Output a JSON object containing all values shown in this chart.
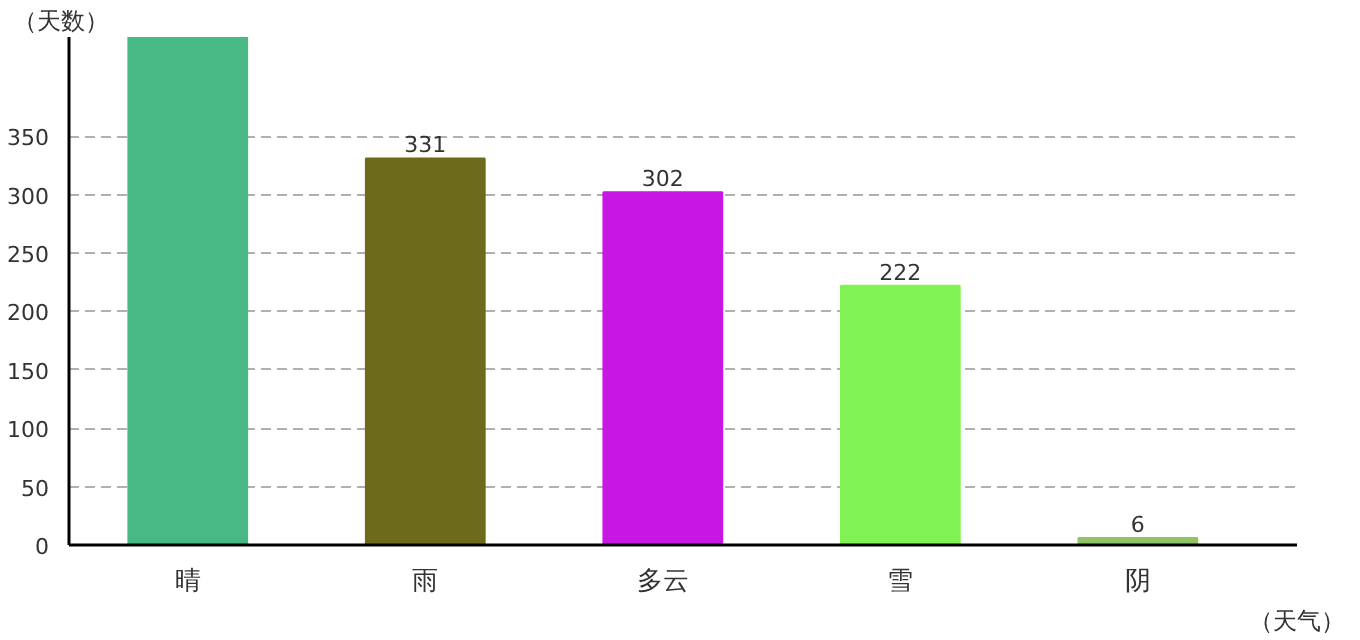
{
  "chart_data": {
    "type": "bar",
    "xlabel": "（天气）",
    "ylabel": "（天数）",
    "categories": [
      "晴",
      "雨",
      "多云",
      "雪",
      "阴"
    ],
    "values": [
      435,
      331,
      302,
      222,
      6
    ],
    "value_labels": [
      null,
      "331",
      "302",
      "222",
      "6"
    ],
    "colors": [
      "#48b884",
      "#6e6a1c",
      "#c817e4",
      "#80f251",
      "#8fc366"
    ],
    "ylim": [
      0,
      435
    ],
    "yticks": [
      0,
      50,
      100,
      150,
      200,
      250,
      300,
      350
    ],
    "grid": "y"
  }
}
